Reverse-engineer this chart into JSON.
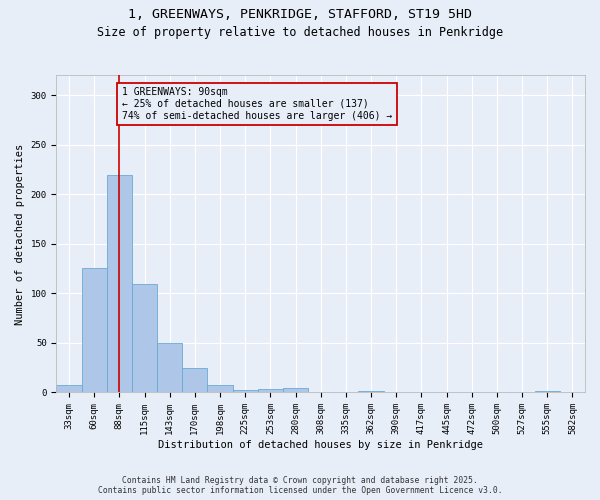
{
  "title_line1": "1, GREENWAYS, PENKRIDGE, STAFFORD, ST19 5HD",
  "title_line2": "Size of property relative to detached houses in Penkridge",
  "xlabel": "Distribution of detached houses by size in Penkridge",
  "ylabel": "Number of detached properties",
  "categories": [
    "33sqm",
    "60sqm",
    "88sqm",
    "115sqm",
    "143sqm",
    "170sqm",
    "198sqm",
    "225sqm",
    "253sqm",
    "280sqm",
    "308sqm",
    "335sqm",
    "362sqm",
    "390sqm",
    "417sqm",
    "445sqm",
    "472sqm",
    "500sqm",
    "527sqm",
    "555sqm",
    "582sqm"
  ],
  "values": [
    8,
    126,
    220,
    110,
    50,
    25,
    8,
    3,
    4,
    5,
    0,
    0,
    1,
    0,
    0,
    0,
    0,
    0,
    0,
    1,
    0
  ],
  "bar_color": "#aec6e8",
  "bar_edge_color": "#6aaad4",
  "background_color": "#e8eef8",
  "grid_color": "#ffffff",
  "vline_x_index": 2,
  "vline_color": "#cc0000",
  "annotation_text": "1 GREENWAYS: 90sqm\n← 25% of detached houses are smaller (137)\n74% of semi-detached houses are larger (406) →",
  "annotation_box_color": "#cc0000",
  "ylim": [
    0,
    320
  ],
  "yticks": [
    0,
    50,
    100,
    150,
    200,
    250,
    300
  ],
  "footer_line1": "Contains HM Land Registry data © Crown copyright and database right 2025.",
  "footer_line2": "Contains public sector information licensed under the Open Government Licence v3.0.",
  "title_fontsize": 9.5,
  "subtitle_fontsize": 8.5,
  "axis_label_fontsize": 7.5,
  "tick_fontsize": 6.5,
  "annotation_fontsize": 7.0,
  "footer_fontsize": 5.8
}
